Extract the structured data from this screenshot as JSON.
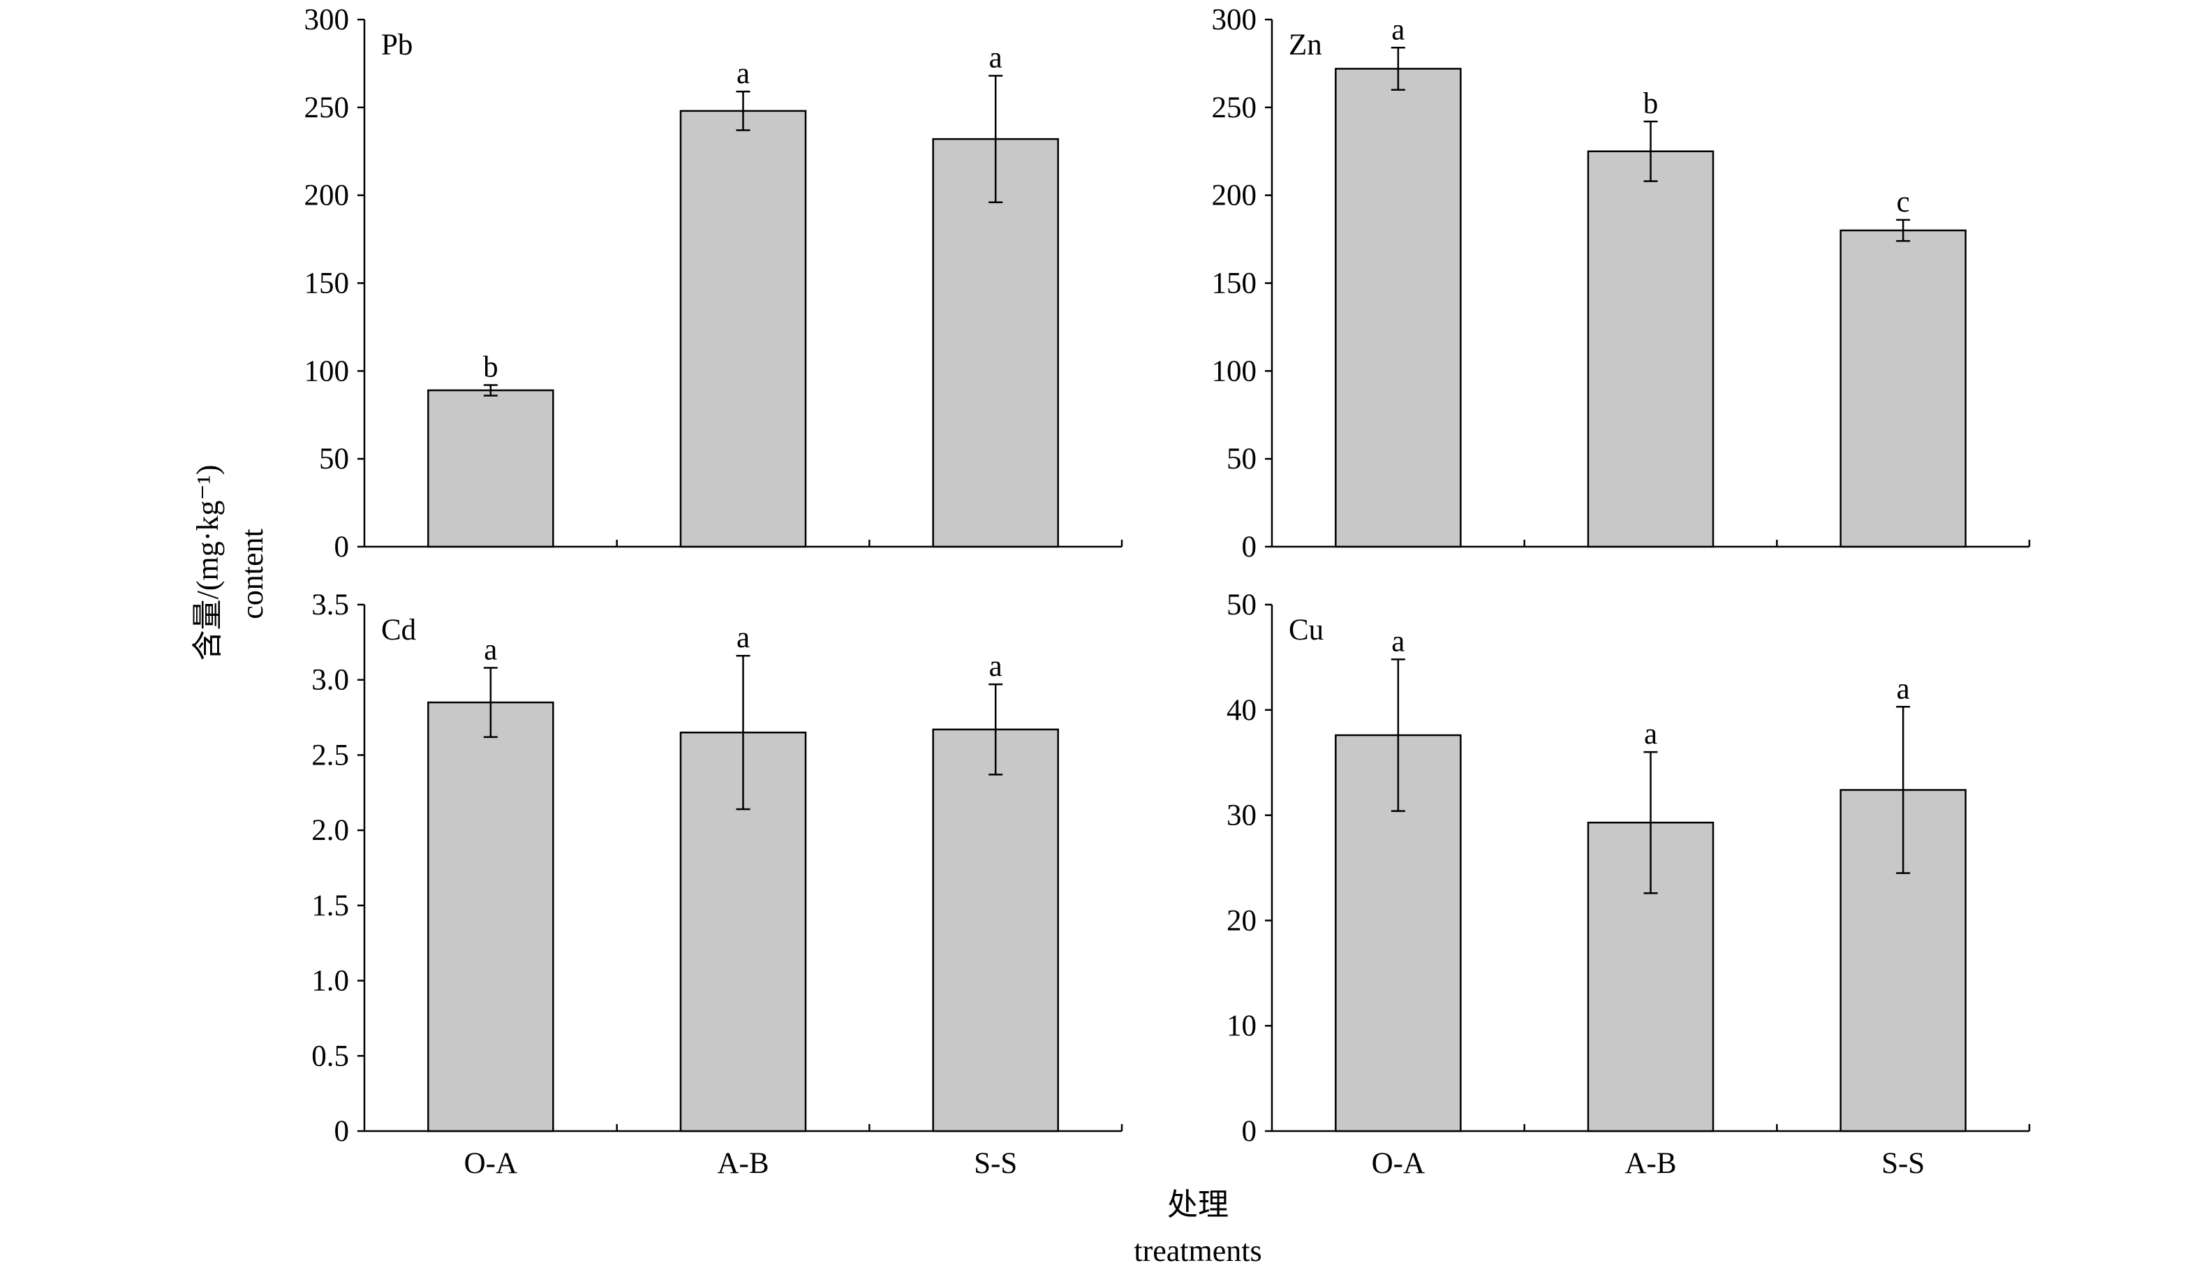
{
  "chart_data": [
    {
      "type": "bar",
      "panel": "Pb",
      "categories": [
        "O-A",
        "A-B",
        "S-S"
      ],
      "values": [
        89,
        248,
        232
      ],
      "errors": [
        3,
        11,
        36
      ],
      "letters": [
        "b",
        "a",
        "a"
      ],
      "ylim": [
        0,
        300
      ],
      "yticks": [
        0,
        50,
        100,
        150,
        200,
        250,
        300
      ],
      "ytick_labels": [
        "0",
        "50",
        "100",
        "150",
        "200",
        "250",
        "300"
      ],
      "show_category_labels": false
    },
    {
      "type": "bar",
      "panel": "Zn",
      "categories": [
        "O-A",
        "A-B",
        "S-S"
      ],
      "values": [
        272,
        225,
        180
      ],
      "errors": [
        12,
        17,
        6
      ],
      "letters": [
        "a",
        "b",
        "c"
      ],
      "ylim": [
        0,
        300
      ],
      "yticks": [
        0,
        50,
        100,
        150,
        200,
        250,
        300
      ],
      "ytick_labels": [
        "0",
        "50",
        "100",
        "150",
        "200",
        "250",
        "300"
      ],
      "show_category_labels": false
    },
    {
      "type": "bar",
      "panel": "Cd",
      "categories": [
        "O-A",
        "A-B",
        "S-S"
      ],
      "values": [
        2.85,
        2.65,
        2.67
      ],
      "errors": [
        0.23,
        0.51,
        0.3
      ],
      "letters": [
        "a",
        "a",
        "a"
      ],
      "ylim": [
        0,
        3.5
      ],
      "yticks": [
        0,
        0.5,
        1,
        1.5,
        2,
        2.5,
        3,
        3.5
      ],
      "ytick_labels": [
        "0",
        "0.5",
        "1.0",
        "1.5",
        "2.0",
        "2.5",
        "3.0",
        "3.5"
      ],
      "show_category_labels": true
    },
    {
      "type": "bar",
      "panel": "Cu",
      "categories": [
        "O-A",
        "A-B",
        "S-S"
      ],
      "values": [
        37.6,
        29.3,
        32.4
      ],
      "errors": [
        7.2,
        6.7,
        7.9
      ],
      "letters": [
        "a",
        "a",
        "a"
      ],
      "ylim": [
        0,
        50
      ],
      "yticks": [
        0,
        10,
        20,
        30,
        40,
        50
      ],
      "ytick_labels": [
        "0",
        "10",
        "20",
        "30",
        "40",
        "50"
      ],
      "show_category_labels": true
    }
  ],
  "labels": {
    "y_axis_zh": "含量/(mg·kg⁻¹)",
    "y_axis_en": "content",
    "x_axis_zh": "处理",
    "x_axis_en": "treatments"
  }
}
